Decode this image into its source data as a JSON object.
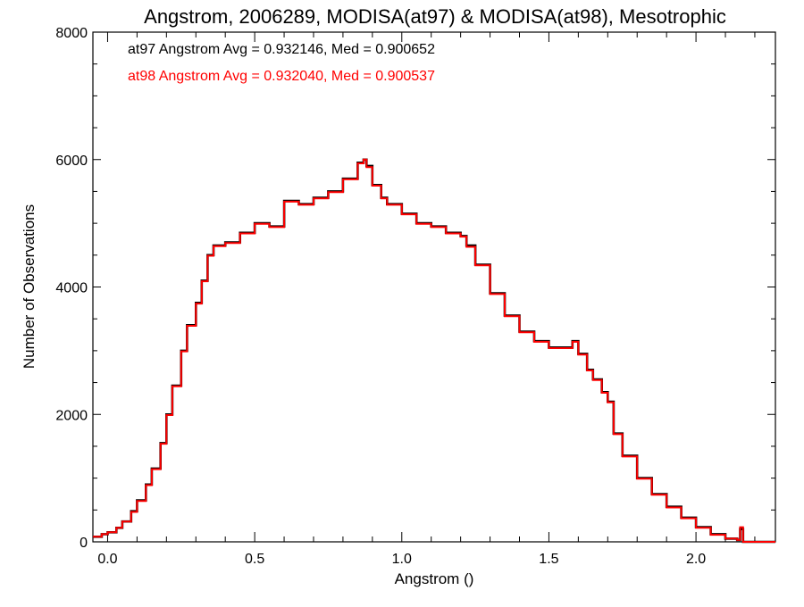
{
  "chart_data": {
    "type": "line",
    "title": "Angstrom, 2006289, MODISA(at97) & MODISA(at98), Mesotrophic",
    "xlabel": "Angstrom ()",
    "ylabel": "Number of Observations",
    "xlim": [
      -0.05,
      2.27
    ],
    "ylim": [
      0,
      8000
    ],
    "xticks": [
      0.0,
      0.5,
      1.0,
      1.5,
      2.0
    ],
    "xtick_labels": [
      "0.0",
      "0.5",
      "1.0",
      "1.5",
      "2.0"
    ],
    "yticks": [
      0,
      2000,
      4000,
      6000,
      8000
    ],
    "ytick_labels": [
      "0",
      "2000",
      "4000",
      "6000",
      "8000"
    ],
    "grid": false,
    "annotations": [
      {
        "text": "at97 Angstrom Avg = 0.932146, Med = 0.900652",
        "color": "#000000"
      },
      {
        "text": "at98 Angstrom Avg = 0.932040, Med = 0.900537",
        "color": "#ff0000"
      }
    ],
    "series": [
      {
        "color": "#000000",
        "x": [
          -0.05,
          -0.02,
          0.0,
          0.03,
          0.05,
          0.08,
          0.1,
          0.13,
          0.15,
          0.18,
          0.2,
          0.22,
          0.25,
          0.27,
          0.3,
          0.32,
          0.34,
          0.36,
          0.4,
          0.45,
          0.5,
          0.55,
          0.6,
          0.65,
          0.7,
          0.75,
          0.8,
          0.85,
          0.87,
          0.88,
          0.9,
          0.93,
          0.95,
          1.0,
          1.05,
          1.1,
          1.15,
          1.2,
          1.22,
          1.25,
          1.3,
          1.35,
          1.4,
          1.45,
          1.5,
          1.55,
          1.58,
          1.6,
          1.63,
          1.65,
          1.68,
          1.7,
          1.72,
          1.75,
          1.8,
          1.85,
          1.9,
          1.95,
          2.0,
          2.05,
          2.1,
          2.14,
          2.15,
          2.16,
          2.2,
          2.27
        ],
        "values": [
          80,
          120,
          150,
          220,
          320,
          480,
          650,
          900,
          1150,
          1550,
          2000,
          2450,
          3000,
          3400,
          3750,
          4100,
          4500,
          4650,
          4700,
          4850,
          5000,
          4950,
          5350,
          5300,
          5400,
          5500,
          5700,
          5950,
          6000,
          5900,
          5600,
          5400,
          5300,
          5150,
          5000,
          4950,
          4850,
          4800,
          4650,
          4350,
          3900,
          3550,
          3300,
          3150,
          3050,
          3050,
          3150,
          2950,
          2700,
          2550,
          2350,
          2200,
          1700,
          1350,
          1000,
          750,
          550,
          380,
          230,
          120,
          50,
          30,
          200,
          0,
          0,
          0
        ]
      },
      {
        "color": "#ff0000",
        "x": [
          -0.05,
          -0.02,
          0.0,
          0.03,
          0.05,
          0.08,
          0.1,
          0.13,
          0.15,
          0.18,
          0.2,
          0.22,
          0.25,
          0.27,
          0.3,
          0.32,
          0.34,
          0.36,
          0.4,
          0.45,
          0.5,
          0.55,
          0.6,
          0.65,
          0.7,
          0.75,
          0.8,
          0.85,
          0.87,
          0.88,
          0.9,
          0.93,
          0.95,
          1.0,
          1.05,
          1.1,
          1.15,
          1.2,
          1.22,
          1.25,
          1.3,
          1.35,
          1.4,
          1.45,
          1.5,
          1.55,
          1.58,
          1.6,
          1.63,
          1.65,
          1.68,
          1.7,
          1.72,
          1.75,
          1.8,
          1.85,
          1.9,
          1.95,
          2.0,
          2.05,
          2.1,
          2.14,
          2.15,
          2.16,
          2.2,
          2.27
        ],
        "values": [
          80,
          120,
          150,
          220,
          320,
          470,
          640,
          890,
          1140,
          1540,
          1990,
          2440,
          2990,
          3390,
          3740,
          4090,
          4490,
          4640,
          4690,
          4840,
          4990,
          4940,
          5340,
          5290,
          5390,
          5490,
          5690,
          5940,
          6000,
          5880,
          5590,
          5390,
          5290,
          5140,
          4990,
          4940,
          4840,
          4790,
          4630,
          4340,
          3890,
          3540,
          3290,
          3140,
          3040,
          3040,
          3140,
          2940,
          2690,
          2540,
          2340,
          2190,
          1690,
          1340,
          990,
          740,
          540,
          370,
          220,
          110,
          50,
          30,
          230,
          0,
          0,
          0
        ]
      }
    ]
  }
}
